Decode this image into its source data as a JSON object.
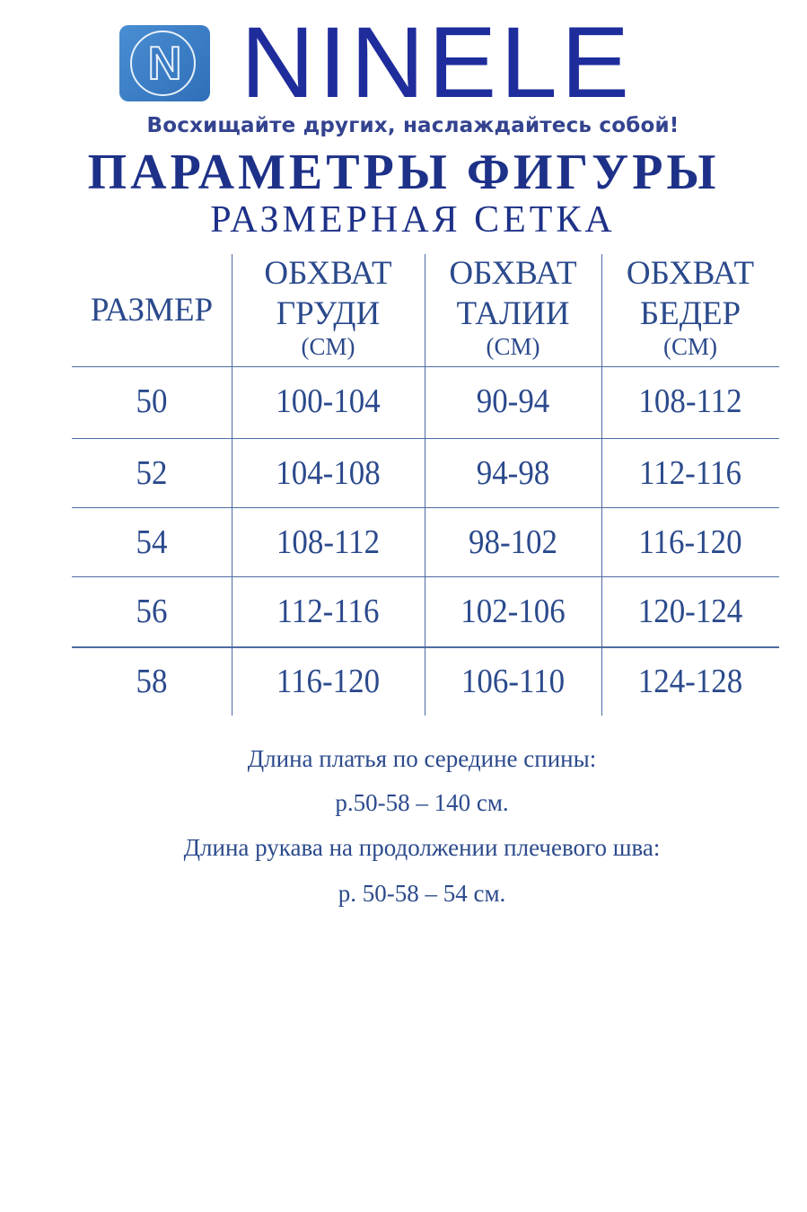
{
  "brand": {
    "name": "NINELE",
    "logo_letter": "N",
    "tagline": "Восхищайте других, наслаждайтесь собой!"
  },
  "title": "ПАРАМЕТРЫ ФИГУРЫ",
  "subtitle": "РАЗМЕРНАЯ СЕТКА",
  "table": {
    "headers": [
      {
        "line1": "РАЗМЕР",
        "line2": "",
        "unit": ""
      },
      {
        "line1": "ОБХВАТ",
        "line2": "ГРУДИ",
        "unit": "(СМ)"
      },
      {
        "line1": "ОБХВАТ",
        "line2": "ТАЛИИ",
        "unit": "(СМ)"
      },
      {
        "line1": "ОБХВАТ",
        "line2": "БЕДЕР",
        "unit": "(СМ)"
      }
    ],
    "rows": [
      [
        "50",
        "100-104",
        "90-94",
        "108-112"
      ],
      [
        "52",
        "104-108",
        "94-98",
        "112-116"
      ],
      [
        "54",
        "108-112",
        "98-102",
        "116-120"
      ],
      [
        "56",
        "112-116",
        "102-106",
        "120-124"
      ],
      [
        "58",
        "116-120",
        "106-110",
        "124-128"
      ]
    ]
  },
  "notes": [
    "Длина платья по середине спины:",
    "р.50-58 – 140 см.",
    "Длина рукава на продолжении плечевого шва:",
    "р. 50-58 – 54 см."
  ],
  "colors": {
    "brand": "#1f2c9c",
    "title": "#1e3188",
    "text": "#2b4a8c",
    "logo_bg": "#3a7bc3"
  }
}
